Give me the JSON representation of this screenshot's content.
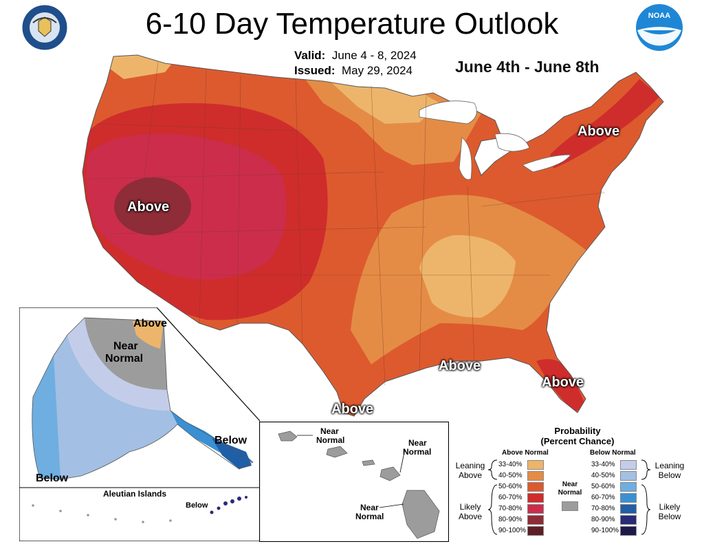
{
  "header": {
    "title": "6-10 Day Temperature Outlook",
    "valid_label": "Valid:",
    "valid_value": "June 4 - 8, 2024",
    "issued_label": "Issued:",
    "issued_value": "May 29, 2024",
    "range_text": "June 4th - June 8th",
    "left_logo": "department-of-commerce-seal",
    "right_logo": "noaa-logo",
    "right_logo_text": "NOAA"
  },
  "conus_labels": {
    "west": "Above",
    "northeast": "Above",
    "southeast": "Above",
    "florida": "Above",
    "texas": "Above"
  },
  "alaska_labels": {
    "north": "Above",
    "center_line1": "Near",
    "center_line2": "Normal",
    "southeast": "Below",
    "southwest": "Below",
    "aleutian_title": "Aleutian Islands",
    "aleutian_below": "Below"
  },
  "hawaii_labels": {
    "nw_line1": "Near",
    "nw_line2": "Normal",
    "ne_line1": "Near",
    "ne_line2": "Normal",
    "s_line1": "Near",
    "s_line2": "Normal"
  },
  "legend": {
    "title_line1": "Probability",
    "title_line2": "(Percent Chance)",
    "above_head": "Above Normal",
    "below_head": "Below Normal",
    "near_line1": "Near",
    "near_line2": "Normal",
    "leaning_above_1": "Leaning",
    "leaning_above_2": "Above",
    "likely_above_1": "Likely",
    "likely_above_2": "Above",
    "leaning_below_1": "Leaning",
    "leaning_below_2": "Below",
    "likely_below_1": "Likely",
    "likely_below_2": "Below",
    "above_rows": [
      {
        "label": "33-40%",
        "color": "#EDB56B"
      },
      {
        "label": "40-50%",
        "color": "#E48C45"
      },
      {
        "label": "50-60%",
        "color": "#DD5A2E"
      },
      {
        "label": "60-70%",
        "color": "#CE2D2C"
      },
      {
        "label": "70-80%",
        "color": "#CC2D4B"
      },
      {
        "label": "80-90%",
        "color": "#8E2C38"
      },
      {
        "label": "90-100%",
        "color": "#5C1F25"
      }
    ],
    "below_rows": [
      {
        "label": "33-40%",
        "color": "#C3CDEA"
      },
      {
        "label": "40-50%",
        "color": "#A3BFE3"
      },
      {
        "label": "50-60%",
        "color": "#6FAEE0"
      },
      {
        "label": "60-70%",
        "color": "#3A90D3"
      },
      {
        "label": "70-80%",
        "color": "#1F5FA8"
      },
      {
        "label": "80-90%",
        "color": "#2A2A78"
      },
      {
        "label": "90-100%",
        "color": "#1D1A4A"
      }
    ],
    "near_color": "#9C9C9C"
  }
}
